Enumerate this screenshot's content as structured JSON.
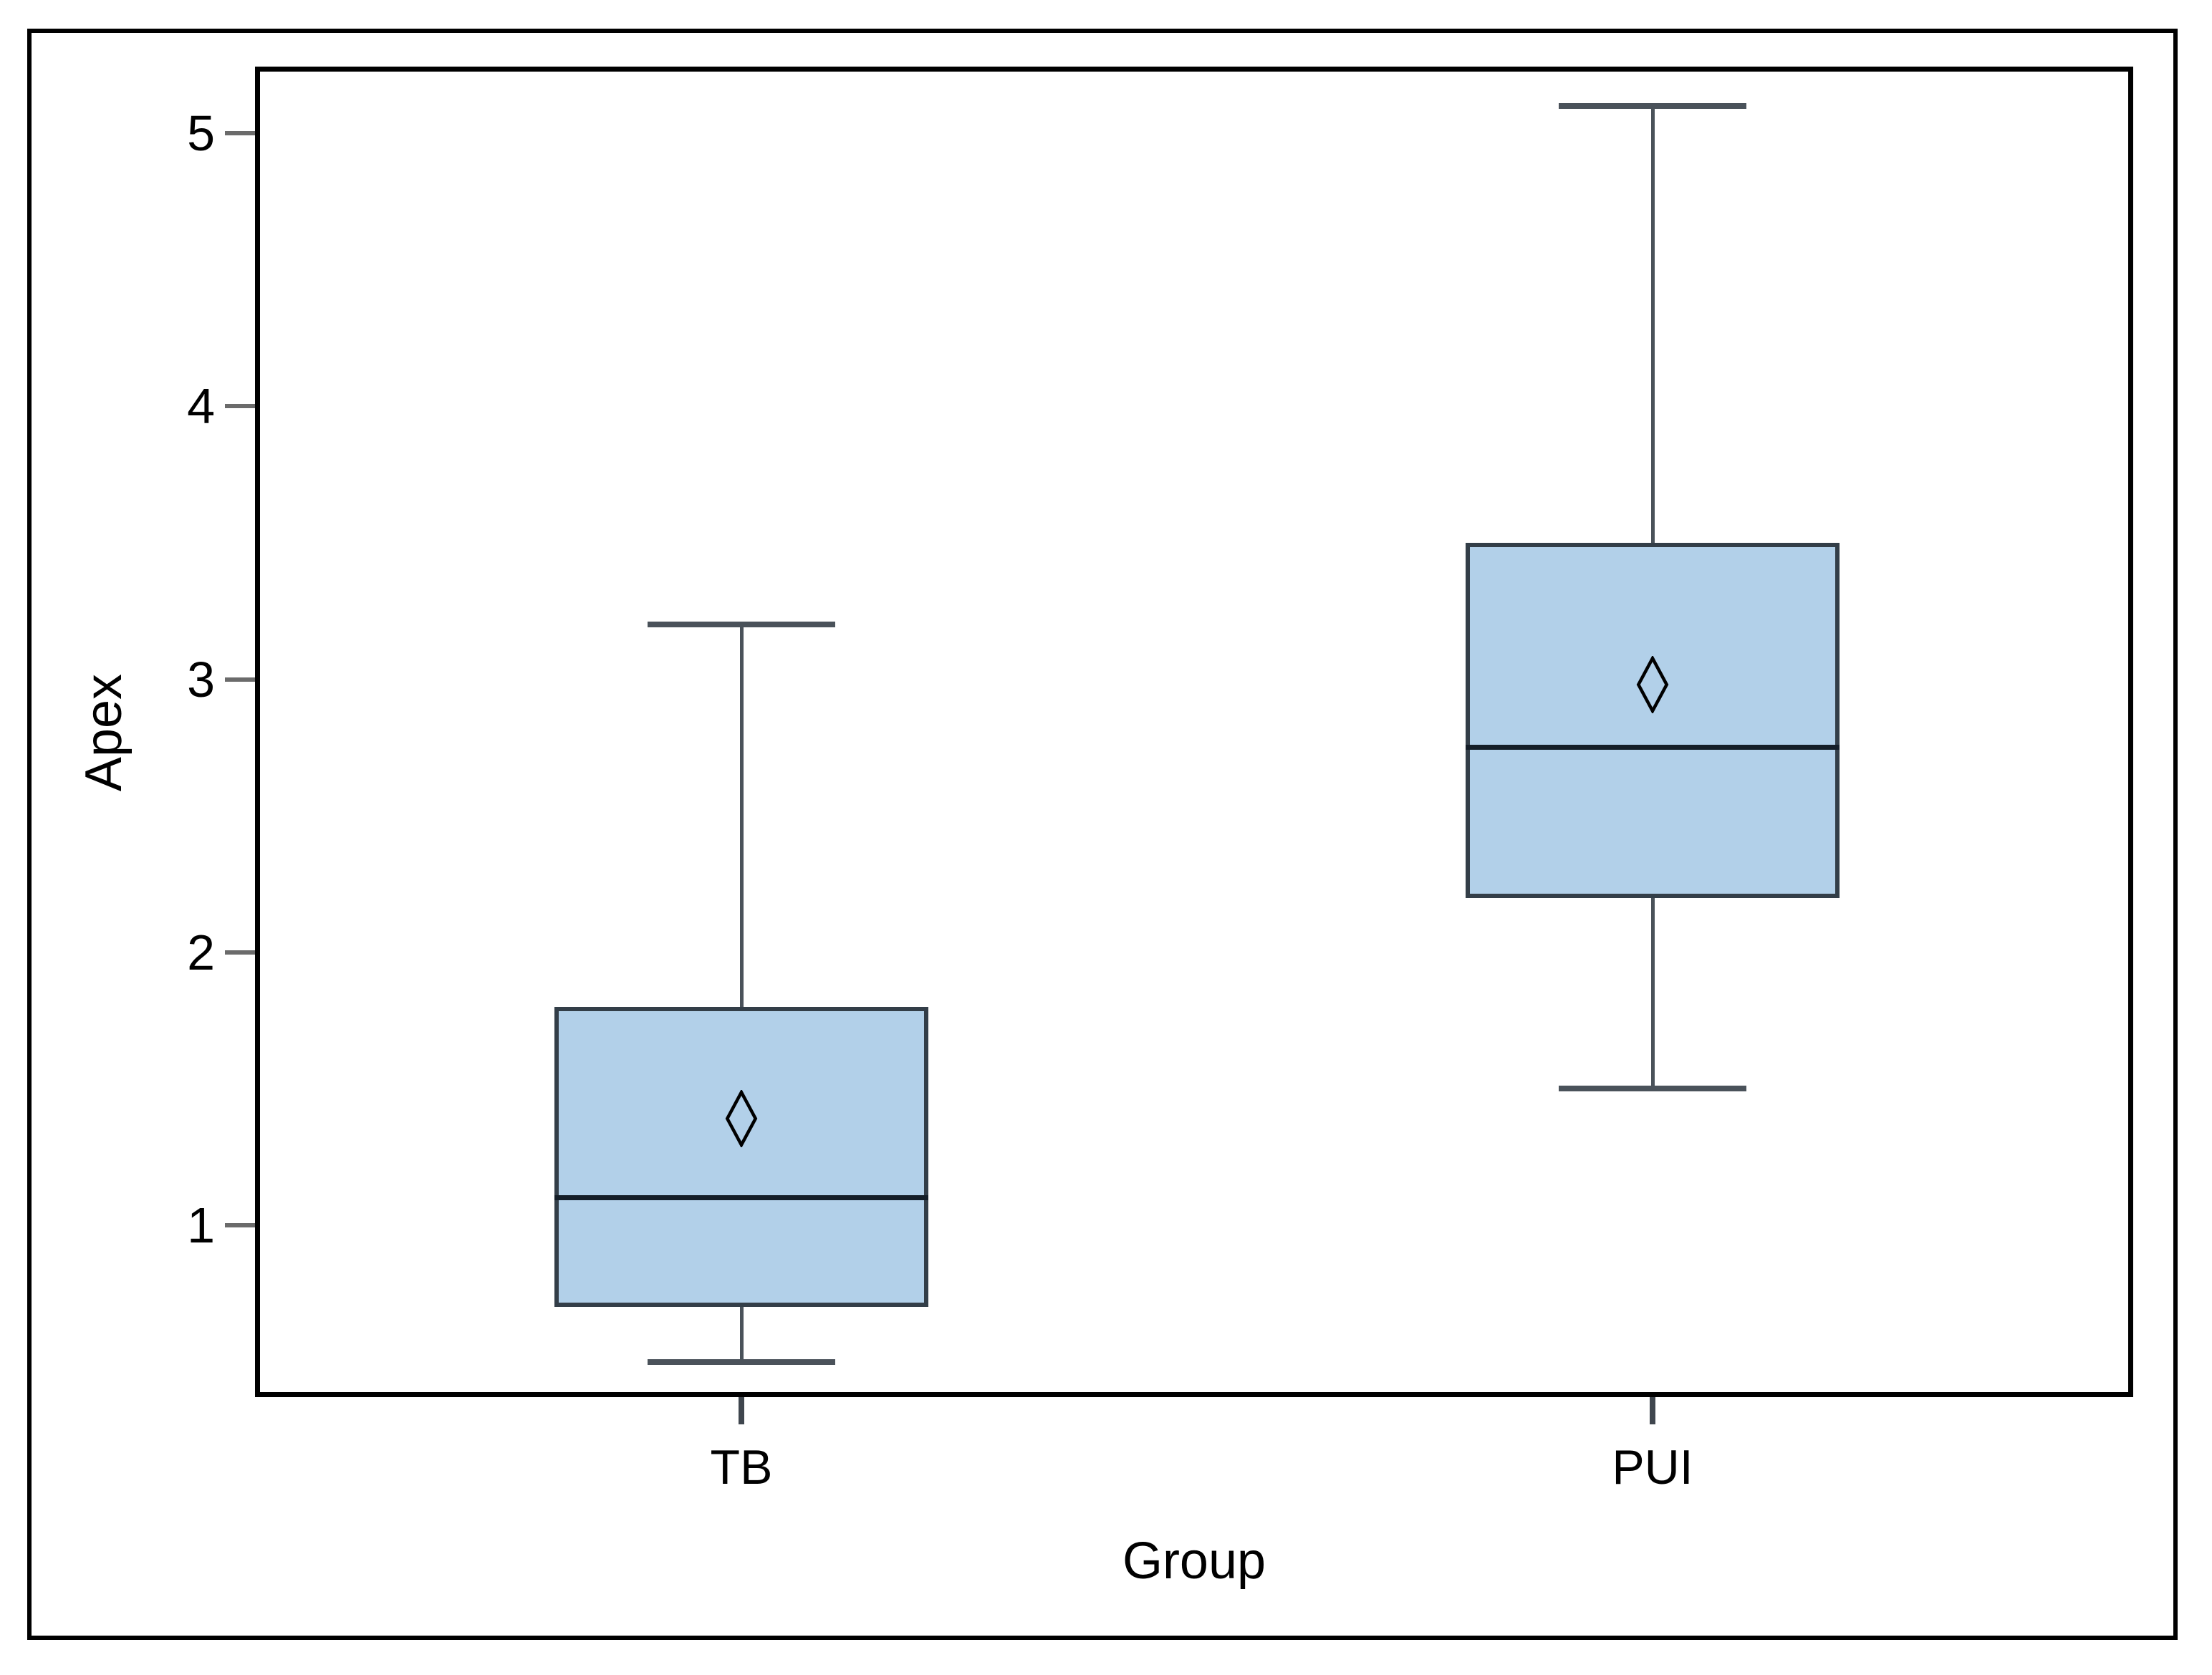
{
  "figure": {
    "background": "#ffffff",
    "outer_border_color": "#000000",
    "frame_color": "#000000"
  },
  "chart_data": {
    "type": "box",
    "title": "",
    "xlabel": "Group",
    "ylabel": "Apex",
    "categories": [
      "TB",
      "PUI"
    ],
    "y_axis": {
      "ticks": [
        1,
        2,
        3,
        4,
        5
      ],
      "range": [
        0.37,
        5.25
      ],
      "grid": false
    },
    "legend": "none",
    "series": [
      {
        "group": "TB",
        "whisker_low": 0.5,
        "q1": 0.7,
        "median": 1.1,
        "q3": 1.8,
        "whisker_high": 3.2,
        "mean": 1.39
      },
      {
        "group": "PUI",
        "whisker_low": 1.5,
        "q1": 2.2,
        "median": 2.75,
        "q3": 3.5,
        "whisker_high": 5.1,
        "mean": 2.98
      }
    ],
    "style": {
      "box_fill": "#b2d0e9",
      "box_border": "#333e48",
      "median_color": "#141e28",
      "whisker_color": "#4a525a",
      "cap_color": "#4a525a",
      "mean_marker": "diamond-outline",
      "mean_marker_color": "#000000",
      "y_tick_color": "#6b6b6b",
      "x_tick_color": "#3f464e",
      "text_color": "#000000"
    }
  }
}
